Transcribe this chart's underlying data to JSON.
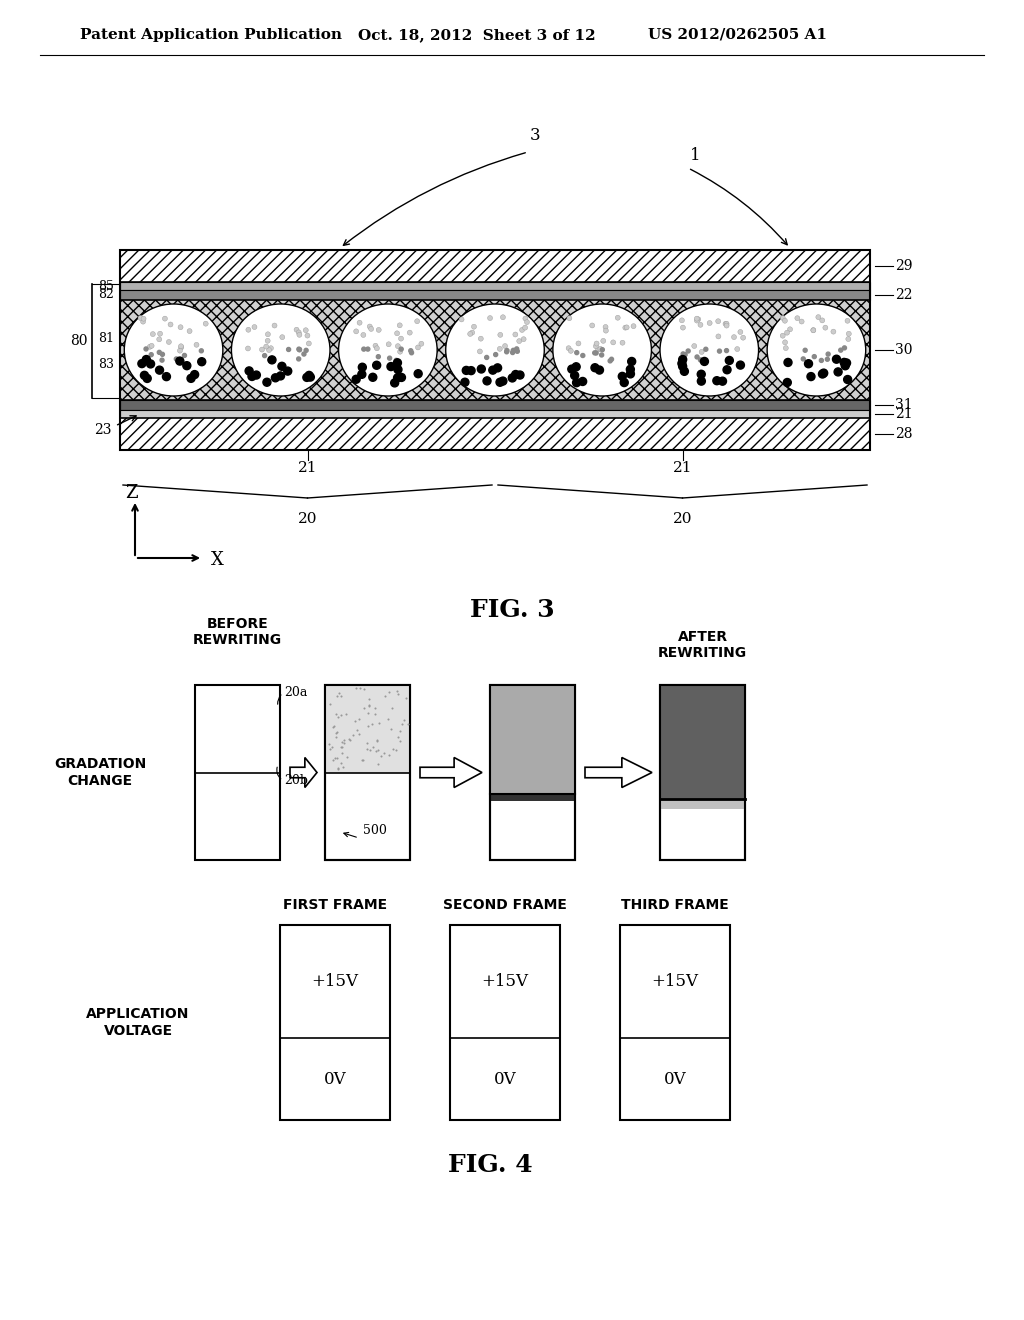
{
  "bg_color": "#ffffff",
  "header_left": "Patent Application Publication",
  "header_mid": "Oct. 18, 2012  Sheet 3 of 12",
  "header_right": "US 2012/0262505 A1",
  "fig3_label": "FIG. 3",
  "fig4_label": "FIG. 4",
  "frame_labels": [
    "FIRST FRAME",
    "SECOND FRAME",
    "THIRD FRAME"
  ],
  "voltage_top": "+15V",
  "voltage_bot": "0V",
  "app_voltage_label": "APPLICATION\nVOLTAGE",
  "gradation_label": "GRADATION\nCHANGE",
  "before_label": "BEFORE\nREWRITING",
  "after_label": "AFTER\nREWRITING",
  "label_20a": "20a",
  "label_20b": "20b",
  "label_500": "500",
  "seq_box_colors_top": [
    "#ffffff",
    "#e8e8e8",
    "#aaaaaa",
    "#707070"
  ],
  "seq_box_colors_bot": [
    "#ffffff",
    "#ffffff",
    "#ffffff",
    "#d0d0d0"
  ]
}
